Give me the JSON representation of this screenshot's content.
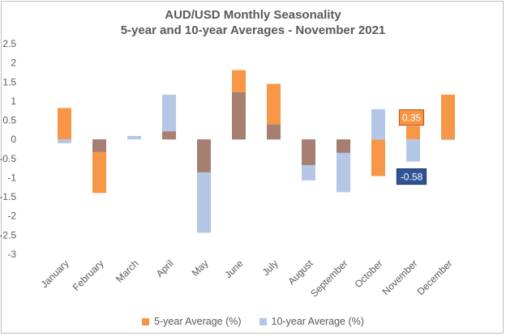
{
  "chart_data": {
    "type": "bar",
    "title": "AUD/USD Monthly  Seasonality",
    "subtitle": "5-year and 10-year Averages - November 2021",
    "categories": [
      "January",
      "February",
      "March",
      "April",
      "May",
      "June",
      "July",
      "August",
      "September",
      "October",
      "November",
      "December"
    ],
    "series": [
      {
        "name": "5-year Average (%)",
        "color": "#f79646",
        "values": [
          0.82,
          -1.4,
          0.0,
          0.21,
          -0.86,
          1.81,
          1.45,
          -0.67,
          -0.35,
          -0.96,
          0.35,
          1.17
        ]
      },
      {
        "name": "10-year Average (%)",
        "color": "#b4c7e7",
        "values": [
          -0.1,
          -0.33,
          0.09,
          1.17,
          -2.44,
          1.23,
          0.39,
          -1.07,
          -1.38,
          0.79,
          -0.58,
          -0.02
        ]
      }
    ],
    "overlap_color": "#a67f72",
    "ylim": [
      -3,
      2.5
    ],
    "yticks": [
      "2.5",
      "2",
      "1.5",
      "1",
      "0.5",
      "0",
      "-0.5",
      "-1",
      "-1.5",
      "-2",
      "-2.5",
      "-3"
    ],
    "annotations": [
      {
        "text": "0.35",
        "month": "November",
        "series": "5-year Average (%)",
        "value": 0.35
      },
      {
        "text": "-0.58",
        "month": "November",
        "series": "10-year Average (%)",
        "value": -0.58
      }
    ]
  }
}
